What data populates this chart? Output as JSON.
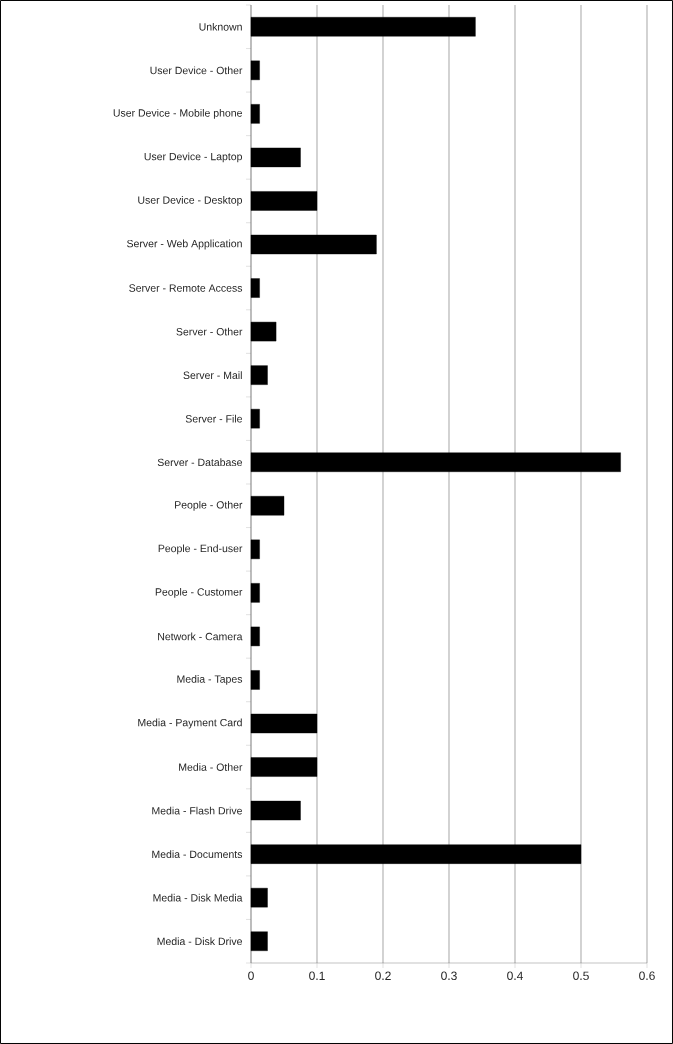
{
  "chart_data": {
    "type": "bar",
    "orientation": "horizontal",
    "categories": [
      "Unknown",
      "User Device - Other",
      "User Device - Mobile phone",
      "User Device - Laptop",
      "User Device - Desktop",
      "Server - Web Application",
      "Server - Remote Access",
      "Server - Other",
      "Server - Mail",
      "Server - File",
      "Server - Database",
      "People - Other",
      "People - End-user",
      "People - Customer",
      "Network - Camera",
      "Media - Tapes",
      "Media - Payment Card",
      "Media - Other",
      "Media - Flash Drive",
      "Media - Documents",
      "Media - Disk Media",
      "Media - Disk Drive"
    ],
    "values": [
      0.34,
      0.013,
      0.013,
      0.075,
      0.1,
      0.19,
      0.013,
      0.038,
      0.025,
      0.013,
      0.56,
      0.05,
      0.013,
      0.013,
      0.013,
      0.013,
      0.1,
      0.1,
      0.075,
      0.5,
      0.025,
      0.025
    ],
    "color": "#000000",
    "xlim": [
      0,
      0.6
    ],
    "xticks": [
      0,
      0.1,
      0.2,
      0.3,
      0.4,
      0.5,
      0.6
    ],
    "grid": "x"
  }
}
